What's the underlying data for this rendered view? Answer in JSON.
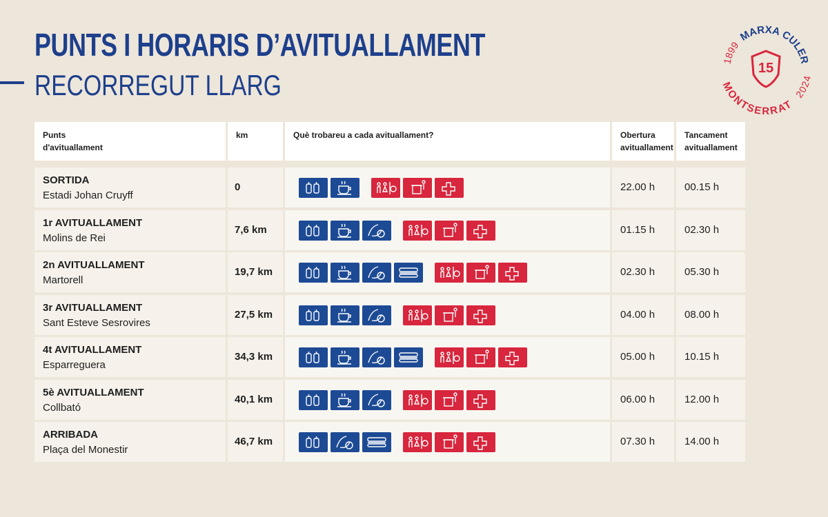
{
  "header": {
    "title": "PUNTS I HORARIS D’AVITUALLAMENT",
    "subtitle": "RECORREGUT LLARG"
  },
  "logo": {
    "year_start": "1899",
    "name": "MARXA CULER",
    "edition": "15",
    "place": "MONTSERRAT",
    "year": "2024"
  },
  "table": {
    "columns": [
      "Punts d'avituallament",
      "km",
      "Què trobareu a cada avituallament?",
      "Obertura avituallament",
      "Tancament avituallament"
    ],
    "rows": [
      {
        "name": "SORTIDA",
        "place": "Estadi Johan Cruyff",
        "km": "0",
        "open": "22.00 h",
        "close": "00.15 h"
      },
      {
        "name": "1r AVITUALLAMENT",
        "place": "Molins de Rei",
        "km": "7,6 km",
        "open": "01.15 h",
        "close": "02.30 h"
      },
      {
        "name": "2n AVITUALLAMENT",
        "place": "Martorell",
        "km": "19,7 km",
        "open": "02.30 h",
        "close": "05.30 h"
      },
      {
        "name": "3r AVITUALLAMENT",
        "place": "Sant Esteve Sesrovires",
        "km": "27,5 km",
        "open": "04.00 h",
        "close": "08.00 h"
      },
      {
        "name": "4t AVITUALLAMENT",
        "place": "Esparreguera",
        "km": "34,3 km",
        "open": "05.00 h",
        "close": "10.15 h"
      },
      {
        "name": "5è AVITUALLAMENT",
        "place": "Collbató",
        "km": "40,1 km",
        "open": "06.00 h",
        "close": "12.00 h"
      },
      {
        "name": "ARRIBADA",
        "place": "Plaça del Monestir",
        "km": "46,7 km",
        "open": "07.30 h",
        "close": "14.00 h"
      }
    ]
  }
}
